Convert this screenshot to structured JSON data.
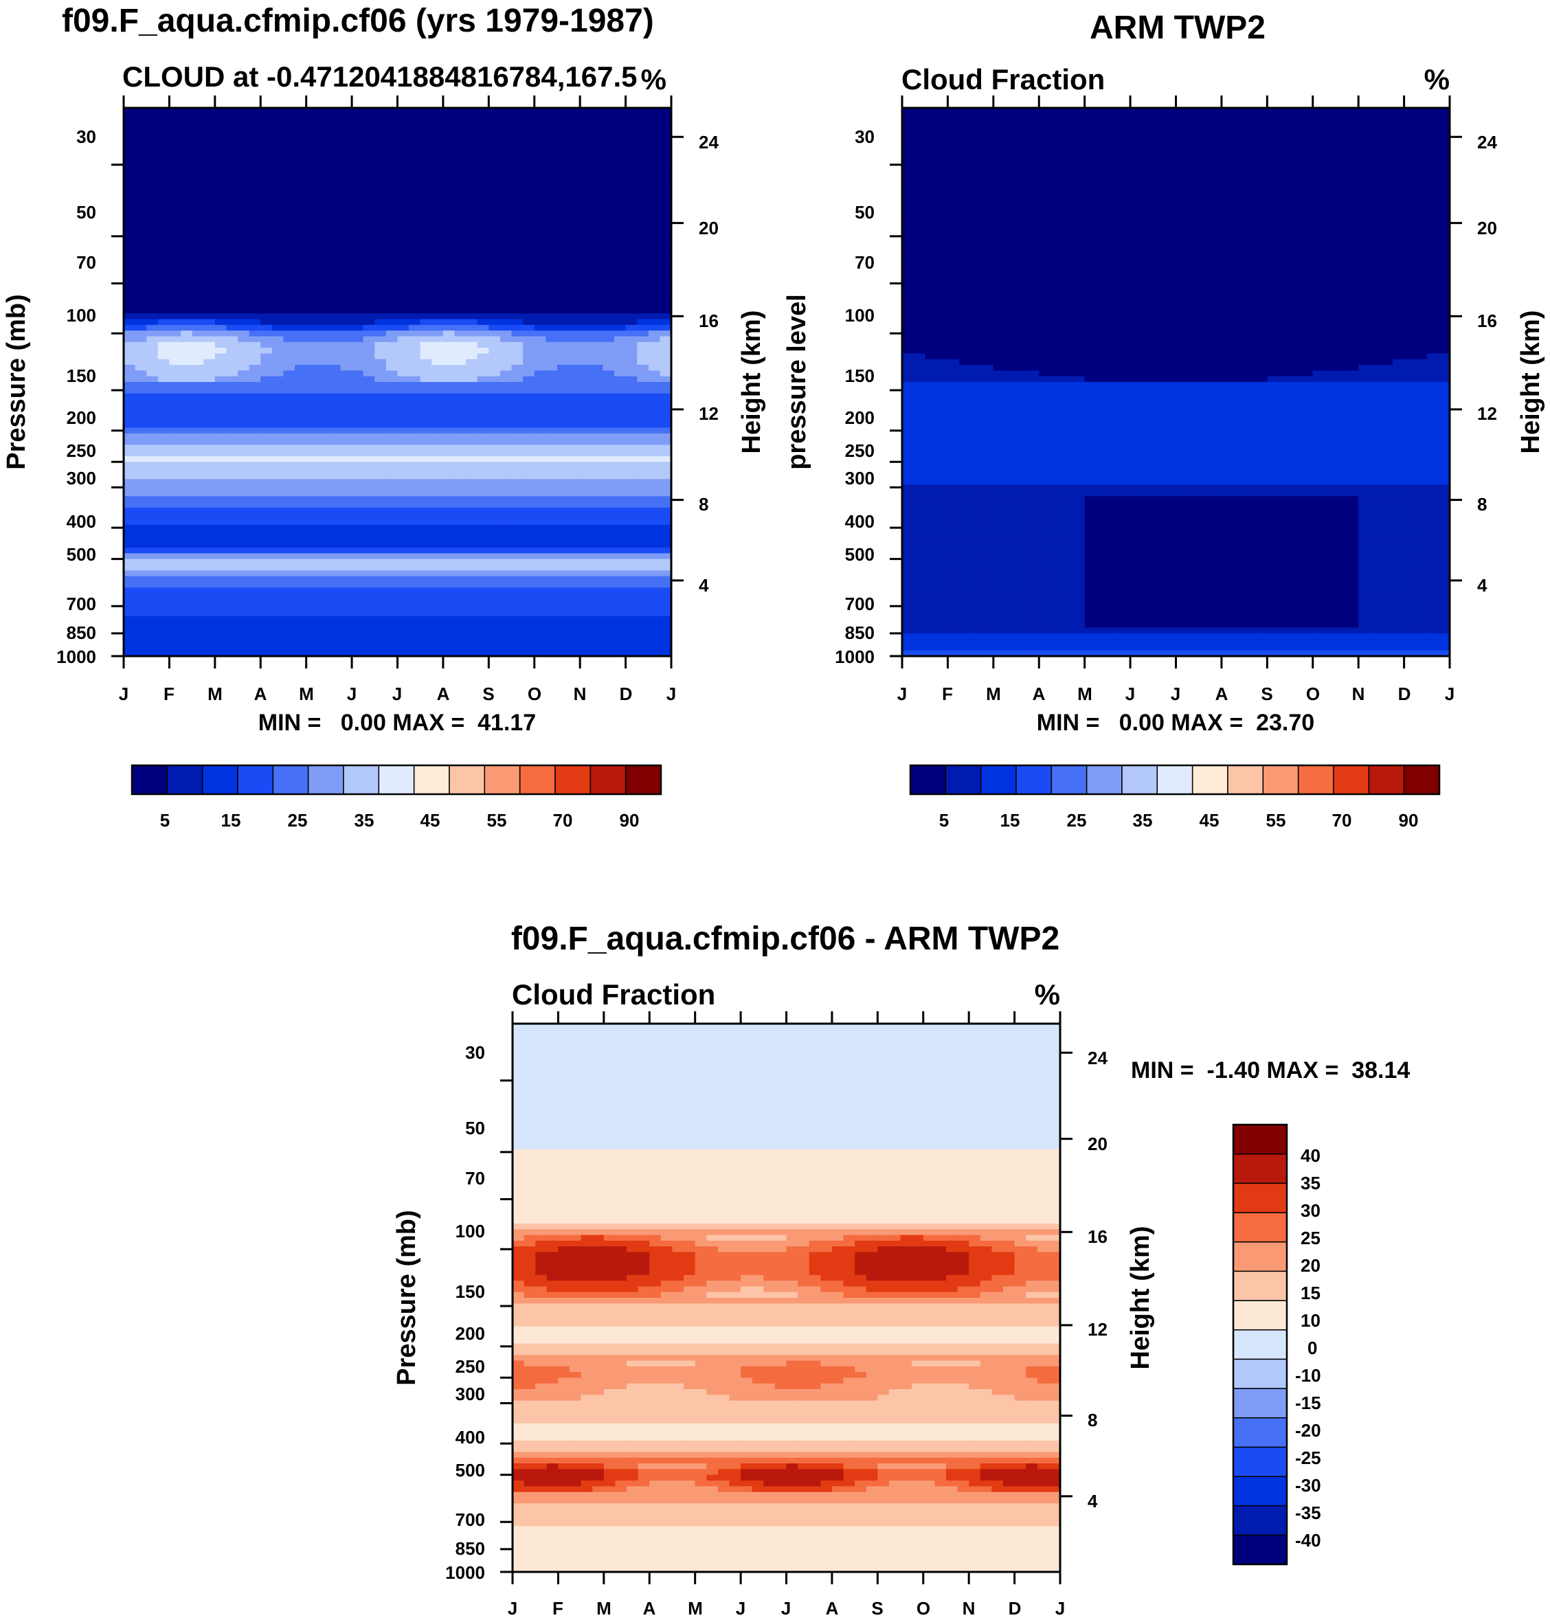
{
  "colors": {
    "seq": [
      "#00007f",
      "#001bb0",
      "#0033e0",
      "#1a4cf5",
      "#4670f5",
      "#7f9cf7",
      "#b3c8fb",
      "#e0ecfe",
      "#ffebd6",
      "#fcc5a8",
      "#f99a75",
      "#f46c3f",
      "#e23a12",
      "#b8190c",
      "#800000"
    ],
    "div": [
      "#00007f",
      "#001bb0",
      "#0033e0",
      "#1a4cf5",
      "#4670f5",
      "#7f9cf7",
      "#b3c8fb",
      "#d6e6fd",
      "#fde8d6",
      "#fcc5a8",
      "#f99a75",
      "#f46c3f",
      "#e23a12",
      "#b8190c",
      "#800000"
    ]
  },
  "chart_data": [
    {
      "type": "heatmap",
      "title": "f09.F_aqua.cfmip.cf06 (yrs 1979-1987)",
      "subtitle_left": "CLOUD at -0.4712041884816784,167.5",
      "units": "%",
      "x_ticks": [
        "J",
        "F",
        "M",
        "A",
        "M",
        "J",
        "J",
        "A",
        "S",
        "O",
        "N",
        "D",
        "J"
      ],
      "y_ticks": [
        "30",
        "50",
        "70",
        "100",
        "150",
        "200",
        "250",
        "300",
        "400",
        "500",
        "700",
        "850",
        "1000"
      ],
      "y2_ticks": [
        "24",
        "20",
        "16",
        "12",
        "8",
        "4"
      ],
      "ylabel": "Pressure (mb)",
      "y2label": "Height (km)",
      "stats": "MIN =   0.00 MAX =  41.17",
      "colorbar_labels": [
        "5",
        "15",
        "25",
        "35",
        "45",
        "55",
        "70",
        "90"
      ],
      "profile": [
        [
          30,
          0
        ],
        [
          70,
          0
        ],
        [
          80,
          1
        ],
        [
          88,
          5
        ],
        [
          95,
          15
        ],
        [
          100,
          25
        ],
        [
          110,
          32
        ],
        [
          125,
          30
        ],
        [
          140,
          26
        ],
        [
          155,
          18
        ],
        [
          185,
          15
        ],
        [
          210,
          28
        ],
        [
          240,
          36
        ],
        [
          280,
          30
        ],
        [
          320,
          24
        ],
        [
          380,
          16
        ],
        [
          440,
          12
        ],
        [
          480,
          22
        ],
        [
          510,
          35
        ],
        [
          550,
          28
        ],
        [
          620,
          18
        ],
        [
          750,
          15
        ],
        [
          900,
          14
        ],
        [
          1000,
          10
        ]
      ]
    },
    {
      "type": "heatmap",
      "title": "ARM TWP2",
      "subtitle_left": "Cloud Fraction",
      "units": "%",
      "x_ticks": [
        "J",
        "F",
        "M",
        "A",
        "M",
        "J",
        "J",
        "A",
        "S",
        "O",
        "N",
        "D",
        "J"
      ],
      "y_ticks": [
        "30",
        "50",
        "70",
        "100",
        "150",
        "200",
        "250",
        "300",
        "400",
        "500",
        "700",
        "850",
        "1000"
      ],
      "y2_ticks": [
        "24",
        "20",
        "16",
        "12",
        "8",
        "4"
      ],
      "ylabel": "pressure level",
      "y2label": "Height (km)",
      "stats": "MIN =   0.00 MAX =  23.70",
      "colorbar_labels": [
        "5",
        "15",
        "25",
        "35",
        "45",
        "55",
        "70",
        "90"
      ],
      "profile": [
        [
          30,
          0
        ],
        [
          75,
          0
        ],
        [
          95,
          2
        ],
        [
          120,
          6
        ],
        [
          150,
          12
        ],
        [
          200,
          14
        ],
        [
          260,
          12
        ],
        [
          320,
          9
        ],
        [
          400,
          7
        ],
        [
          500,
          8
        ],
        [
          650,
          6
        ],
        [
          800,
          8
        ],
        [
          900,
          12
        ],
        [
          960,
          16
        ],
        [
          1000,
          20
        ]
      ]
    },
    {
      "type": "heatmap",
      "title": "f09.F_aqua.cfmip.cf06 - ARM TWP2",
      "subtitle_left": "Cloud Fraction",
      "units": "%",
      "x_ticks": [
        "J",
        "F",
        "M",
        "A",
        "M",
        "J",
        "J",
        "A",
        "S",
        "O",
        "N",
        "D",
        "J"
      ],
      "y_ticks": [
        "30",
        "50",
        "70",
        "100",
        "150",
        "200",
        "250",
        "300",
        "400",
        "500",
        "700",
        "850",
        "1000"
      ],
      "y2_ticks": [
        "24",
        "20",
        "16",
        "12",
        "8",
        "4"
      ],
      "ylabel": "Pressure (mb)",
      "y2label": "Height (km)",
      "stats": "MIN =  -1.40 MAX =  38.14",
      "colorbar_labels": [
        "40",
        "35",
        "30",
        "25",
        "20",
        "15",
        "10",
        "0",
        "-10",
        "-15",
        "-20",
        "-25",
        "-30",
        "-35",
        "-40"
      ],
      "profile": [
        [
          30,
          -1
        ],
        [
          48,
          -1
        ],
        [
          55,
          4
        ],
        [
          75,
          6
        ],
        [
          85,
          12
        ],
        [
          95,
          22
        ],
        [
          105,
          28
        ],
        [
          120,
          27
        ],
        [
          135,
          20
        ],
        [
          155,
          13
        ],
        [
          185,
          8
        ],
        [
          210,
          14
        ],
        [
          240,
          20
        ],
        [
          280,
          16
        ],
        [
          330,
          11
        ],
        [
          380,
          8
        ],
        [
          420,
          14
        ],
        [
          460,
          22
        ],
        [
          500,
          30
        ],
        [
          540,
          24
        ],
        [
          620,
          14
        ],
        [
          750,
          9
        ],
        [
          900,
          6
        ],
        [
          1000,
          5
        ]
      ]
    }
  ]
}
